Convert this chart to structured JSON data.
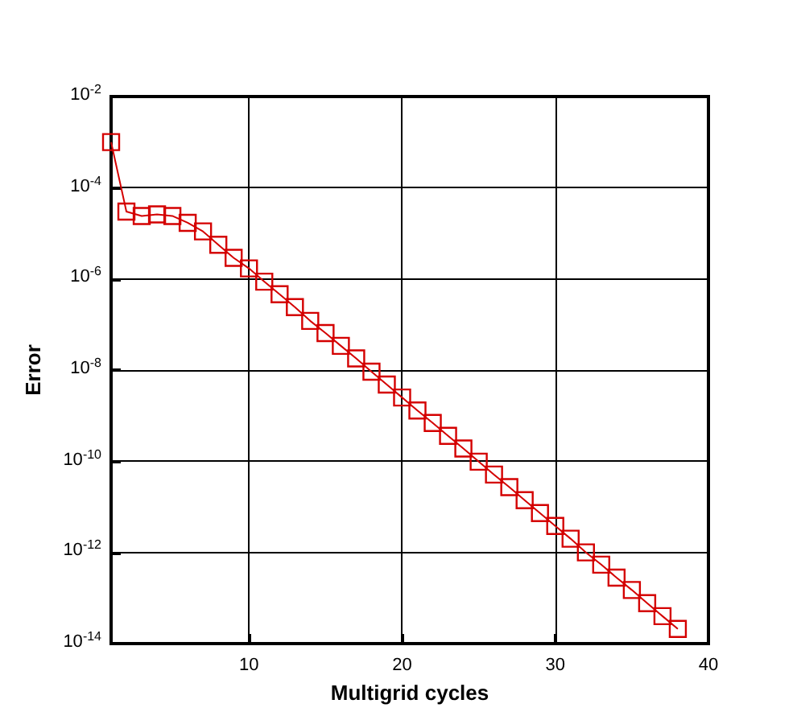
{
  "chart_data": {
    "type": "line",
    "xlabel": "Multigrid cycles",
    "ylabel": "Error",
    "x": [
      1,
      2,
      3,
      4,
      5,
      6,
      7,
      8,
      9,
      10,
      11,
      12,
      13,
      14,
      15,
      16,
      17,
      18,
      19,
      20,
      21,
      22,
      23,
      24,
      25,
      26,
      27,
      28,
      29,
      30,
      31,
      32,
      33,
      34,
      35,
      36,
      37,
      38
    ],
    "series": [
      {
        "color": "#d40000",
        "values": [
          0.001,
          3e-05,
          2.4e-05,
          2.6e-05,
          2.4e-05,
          1.7e-05,
          1.1e-05,
          5.6e-06,
          2.9e-06,
          1.7e-06,
          8.7e-07,
          4.6e-07,
          2.4e-07,
          1.2e-07,
          6.5e-08,
          3.4e-08,
          1.8e-08,
          9.2e-09,
          4.8e-09,
          2.5e-09,
          1.3e-09,
          6.9e-10,
          3.6e-10,
          1.9e-10,
          9.8e-11,
          5.1e-11,
          2.7e-11,
          1.4e-11,
          7.3e-12,
          3.8e-12,
          2e-12,
          1e-12,
          5.4e-13,
          2.8e-13,
          1.5e-13,
          7.7e-14,
          4e-14,
          2.1e-14
        ]
      }
    ],
    "xlim": [
      1,
      40
    ],
    "xticks": [
      10,
      20,
      30,
      40
    ],
    "log": "y",
    "ylim": [
      1e-14,
      0.01
    ],
    "yticks": [
      {
        "value": 1e-14,
        "label": "10$^{-14}$"
      },
      {
        "value": 1e-12,
        "label": "10$^{-12}$"
      },
      {
        "value": 1e-10,
        "label": "10$^{-10}$"
      },
      {
        "value": 1e-08,
        "label": "10$^{-8}$"
      },
      {
        "value": 1e-06,
        "label": "10$^{-6}$"
      },
      {
        "value": 0.0001,
        "label": "10$^{-4}$"
      },
      {
        "value": 0.01,
        "label": "10$^{-2}$"
      }
    ],
    "grid": true,
    "marker": "square",
    "line_style": "solid"
  }
}
